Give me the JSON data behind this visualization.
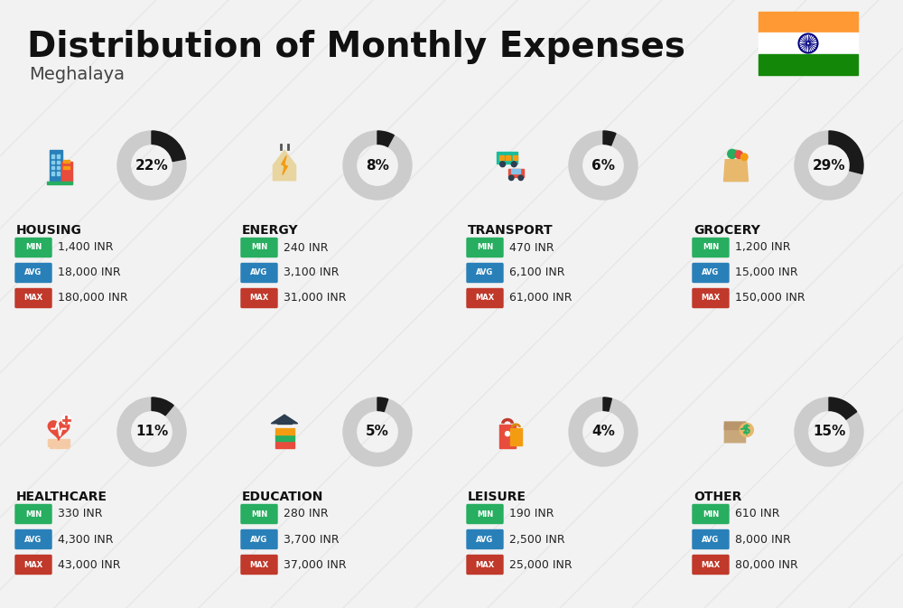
{
  "title": "Distribution of Monthly Expenses",
  "subtitle": "Meghalaya",
  "background_color": "#f2f2f2",
  "categories": [
    {
      "name": "HOUSING",
      "pct": 22,
      "min": "1,400 INR",
      "avg": "18,000 INR",
      "max": "180,000 INR",
      "row": 0,
      "col": 0
    },
    {
      "name": "ENERGY",
      "pct": 8,
      "min": "240 INR",
      "avg": "3,100 INR",
      "max": "31,000 INR",
      "row": 0,
      "col": 1
    },
    {
      "name": "TRANSPORT",
      "pct": 6,
      "min": "470 INR",
      "avg": "6,100 INR",
      "max": "61,000 INR",
      "row": 0,
      "col": 2
    },
    {
      "name": "GROCERY",
      "pct": 29,
      "min": "1,200 INR",
      "avg": "15,000 INR",
      "max": "150,000 INR",
      "row": 0,
      "col": 3
    },
    {
      "name": "HEALTHCARE",
      "pct": 11,
      "min": "330 INR",
      "avg": "4,300 INR",
      "max": "43,000 INR",
      "row": 1,
      "col": 0
    },
    {
      "name": "EDUCATION",
      "pct": 5,
      "min": "280 INR",
      "avg": "3,700 INR",
      "max": "37,000 INR",
      "row": 1,
      "col": 1
    },
    {
      "name": "LEISURE",
      "pct": 4,
      "min": "190 INR",
      "avg": "2,500 INR",
      "max": "25,000 INR",
      "row": 1,
      "col": 2
    },
    {
      "name": "OTHER",
      "pct": 15,
      "min": "610 INR",
      "avg": "8,000 INR",
      "max": "80,000 INR",
      "row": 1,
      "col": 3
    }
  ],
  "min_color": "#27ae60",
  "avg_color": "#2980b9",
  "max_color": "#c0392b",
  "category_name_color": "#111111",
  "value_color": "#222222",
  "donut_filled_color": "#1a1a1a",
  "donut_empty_color": "#cccccc",
  "flag_orange": "#FF9933",
  "flag_white": "#FFFFFF",
  "flag_green": "#138808",
  "flag_navy": "#000080"
}
